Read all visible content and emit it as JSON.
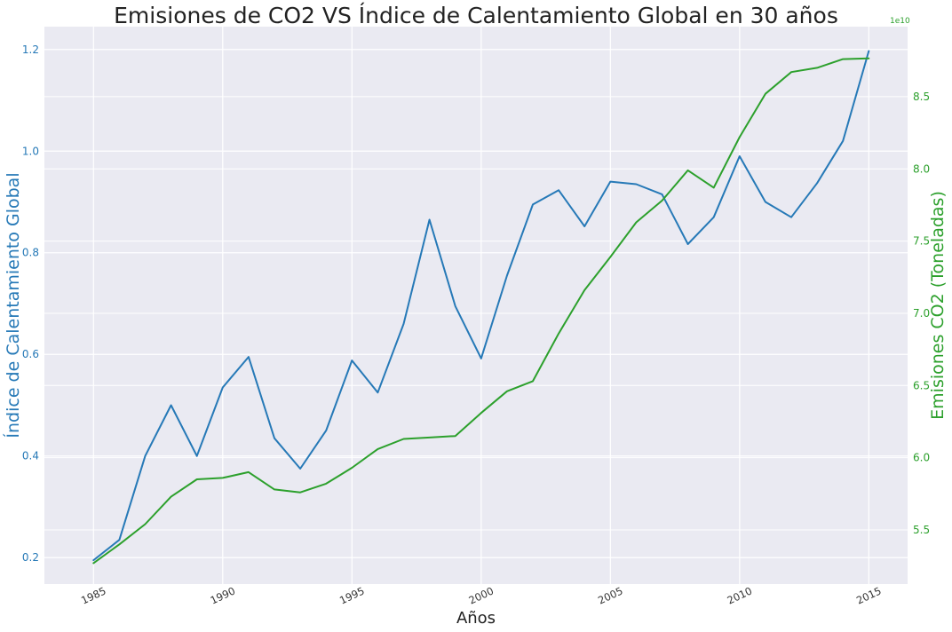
{
  "chart_data": {
    "type": "line",
    "title": "Emisiones de CO2 VS Índice de Calentamiento Global en 30 años",
    "xlabel": "Años",
    "ylabel_left": "Índice de Calentamiento Global",
    "ylabel_right": "Emisiones CO2 (Toneladas)",
    "right_axis_exponent": "1e10",
    "grid": true,
    "x": [
      1985,
      1986,
      1987,
      1988,
      1989,
      1990,
      1991,
      1992,
      1993,
      1994,
      1995,
      1996,
      1997,
      1998,
      1999,
      2000,
      2001,
      2002,
      2003,
      2004,
      2005,
      2006,
      2007,
      2008,
      2009,
      2010,
      2011,
      2012,
      2013,
      2014,
      2015
    ],
    "x_ticks": [
      1985,
      1990,
      1995,
      2000,
      2005,
      2010,
      2015
    ],
    "x_lim": [
      1983.1,
      2016.5
    ],
    "series": [
      {
        "name": "Índice de Calentamiento Global",
        "axis": "left",
        "color": "#2679b7",
        "values": [
          0.195,
          0.235,
          0.4,
          0.5,
          0.4,
          0.535,
          0.595,
          0.435,
          0.375,
          0.45,
          0.588,
          0.525,
          0.66,
          0.865,
          0.695,
          0.592,
          0.755,
          0.895,
          0.923,
          0.852,
          0.94,
          0.935,
          0.915,
          0.817,
          0.87,
          0.99,
          0.9,
          0.87,
          0.937,
          1.02,
          1.197
        ],
        "ylim": [
          0.148,
          1.245
        ],
        "ticks": [
          0.2,
          0.4,
          0.6,
          0.8,
          1.0,
          1.2
        ],
        "tick_labels": [
          "0.2",
          "0.4",
          "0.6",
          "0.8",
          "1.0",
          "1.2"
        ]
      },
      {
        "name": "Emisiones CO2 (Toneladas)",
        "axis": "right",
        "color": "#2ca02c",
        "values": [
          5.27,
          5.4,
          5.54,
          5.73,
          5.85,
          5.86,
          5.9,
          5.78,
          5.76,
          5.82,
          5.93,
          6.06,
          6.13,
          6.14,
          6.15,
          6.31,
          6.46,
          6.53,
          6.86,
          7.16,
          7.39,
          7.63,
          7.78,
          7.99,
          7.87,
          8.22,
          8.52,
          8.67,
          8.7,
          8.76,
          8.765
        ],
        "ylim": [
          5.125,
          8.985
        ],
        "ticks": [
          5.5,
          6.0,
          6.5,
          7.0,
          7.5,
          8.0,
          8.5
        ],
        "tick_labels": [
          "5.5",
          "6.0",
          "6.5",
          "7.0",
          "7.5",
          "8.0",
          "8.5"
        ]
      }
    ]
  }
}
